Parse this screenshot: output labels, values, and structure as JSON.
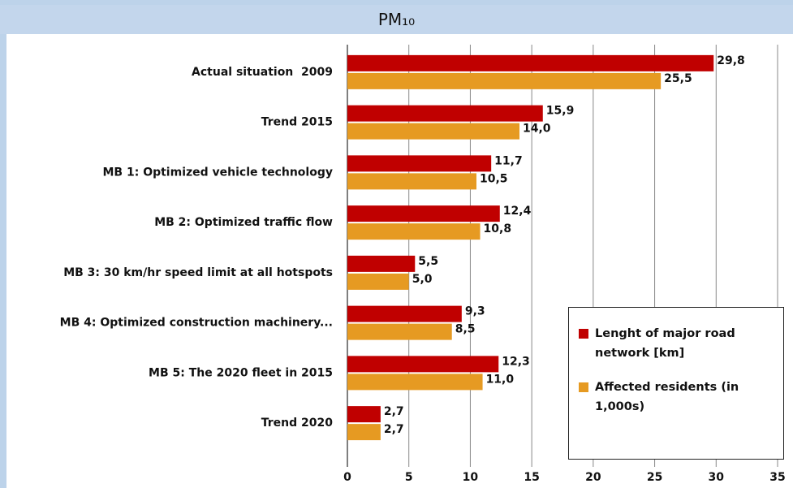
{
  "chart_data": {
    "type": "hbar",
    "title": "PM₁₀",
    "categories": [
      "Actual situation  2009",
      "Trend 2015",
      "MB 1: Optimized vehicle technology",
      "MB 2: Optimized traffic flow",
      "MB 3: 30 km/hr speed limit at all hotspots",
      "MB 4: Optimized construction machinery...",
      "MB 5: The 2020 fleet in 2015",
      "Trend 2020"
    ],
    "series": [
      {
        "name": "Lenght of major road network [km]",
        "color": "#c00000",
        "values": [
          29.8,
          15.9,
          11.7,
          12.4,
          5.5,
          9.3,
          12.3,
          2.7
        ],
        "value_labels": [
          "29,8",
          "15,9",
          "11,7",
          "12,4",
          "5,5",
          "9,3",
          "12,3",
          "2,7"
        ]
      },
      {
        "name": "Affected residents (in 1,000s)",
        "color": "#e69a22",
        "values": [
          25.5,
          14.0,
          10.5,
          10.8,
          5.0,
          8.5,
          11.0,
          2.7
        ],
        "value_labels": [
          "25,5",
          "14,0",
          "10,5",
          "10,8",
          "5,0",
          "8,5",
          "11,0",
          "2,7"
        ]
      }
    ],
    "xlim": [
      0,
      35
    ],
    "xticks": [
      0,
      5,
      10,
      15,
      20,
      25,
      30,
      35
    ],
    "grid": true,
    "legend": "lower right"
  }
}
